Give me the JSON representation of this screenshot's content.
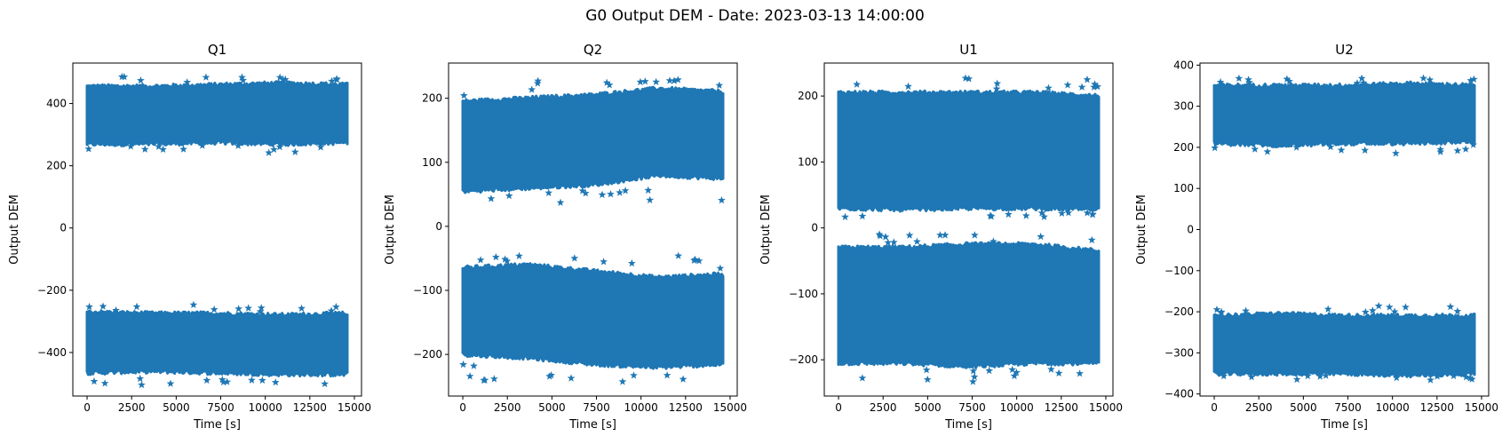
{
  "figure": {
    "title": "G0 Output DEM - Date: 2023-03-13 14:00:00"
  },
  "style": {
    "marker_color": "#1f77b4",
    "marker": "star"
  },
  "chart_data": [
    {
      "type": "scatter",
      "title": "Q1",
      "xlabel": "Time [s]",
      "ylabel": "Output DEM",
      "xlim": [
        -800,
        15400
      ],
      "ylim": [
        -540,
        530
      ],
      "xticks": [
        0,
        2500,
        5000,
        7500,
        10000,
        12500,
        15000
      ],
      "yticks": [
        -400,
        -200,
        0,
        200,
        400
      ],
      "bands": [
        {
          "x_range": [
            0,
            14600
          ],
          "y_low": [
            270,
            270,
            275,
            270,
            275
          ],
          "y_high": [
            455,
            455,
            460,
            465,
            460
          ],
          "outlier_low": 240,
          "outlier_high": 490
        },
        {
          "x_range": [
            0,
            14600
          ],
          "y_low": [
            -465,
            -460,
            -465,
            -470,
            -470
          ],
          "y_high": [
            -270,
            -275,
            -275,
            -280,
            -275
          ],
          "outlier_low": -505,
          "outlier_high": -245
        }
      ]
    },
    {
      "type": "scatter",
      "title": "Q2",
      "xlabel": "Time [s]",
      "ylabel": "Output DEM",
      "xlim": [
        -800,
        15400
      ],
      "ylim": [
        -265,
        255
      ],
      "xticks": [
        0,
        2500,
        5000,
        7500,
        10000,
        12500,
        15000
      ],
      "yticks": [
        -200,
        -100,
        0,
        100,
        200
      ],
      "bands": [
        {
          "x_range": [
            0,
            14600
          ],
          "y_low": [
            55,
            60,
            65,
            80,
            75
          ],
          "y_high": [
            195,
            200,
            205,
            215,
            210
          ],
          "outlier_low": 35,
          "outlier_high": 230
        },
        {
          "x_range": [
            0,
            14600
          ],
          "y_low": [
            -200,
            -205,
            -215,
            -220,
            -215
          ],
          "y_high": [
            -65,
            -60,
            -70,
            -80,
            -75
          ],
          "outlier_low": -245,
          "outlier_high": -45
        }
      ]
    },
    {
      "type": "scatter",
      "title": "U1",
      "xlabel": "Time [s]",
      "ylabel": "Output DEM",
      "xlim": [
        -800,
        15400
      ],
      "ylim": [
        -255,
        250
      ],
      "xticks": [
        0,
        2500,
        5000,
        7500,
        10000,
        12500,
        15000
      ],
      "yticks": [
        -200,
        -100,
        0,
        100,
        200
      ],
      "bands": [
        {
          "x_range": [
            0,
            14600
          ],
          "y_low": [
            30,
            28,
            30,
            30,
            28
          ],
          "y_high": [
            205,
            205,
            205,
            205,
            200
          ],
          "outlier_low": 15,
          "outlier_high": 228
        },
        {
          "x_range": [
            0,
            14600
          ],
          "y_low": [
            -205,
            -205,
            -210,
            -205,
            -205
          ],
          "y_high": [
            -30,
            -30,
            -25,
            -25,
            -35
          ],
          "outlier_low": -235,
          "outlier_high": -8
        }
      ]
    },
    {
      "type": "scatter",
      "title": "U2",
      "xlabel": "Time [s]",
      "ylabel": "Output DEM",
      "xlim": [
        -800,
        15400
      ],
      "ylim": [
        -405,
        405
      ],
      "xticks": [
        0,
        2500,
        5000,
        7500,
        10000,
        12500,
        15000
      ],
      "yticks": [
        -400,
        -300,
        -200,
        -100,
        0,
        100,
        200,
        300,
        400
      ],
      "bands": [
        {
          "x_range": [
            0,
            14600
          ],
          "y_low": [
            210,
            205,
            210,
            210,
            215
          ],
          "y_high": [
            350,
            350,
            350,
            355,
            350
          ],
          "outlier_low": 185,
          "outlier_high": 368
        },
        {
          "x_range": [
            0,
            14600
          ],
          "y_low": [
            -350,
            -350,
            -350,
            -355,
            -350
          ],
          "y_high": [
            -210,
            -205,
            -210,
            -210,
            -210
          ],
          "outlier_low": -368,
          "outlier_high": -185
        }
      ]
    }
  ]
}
